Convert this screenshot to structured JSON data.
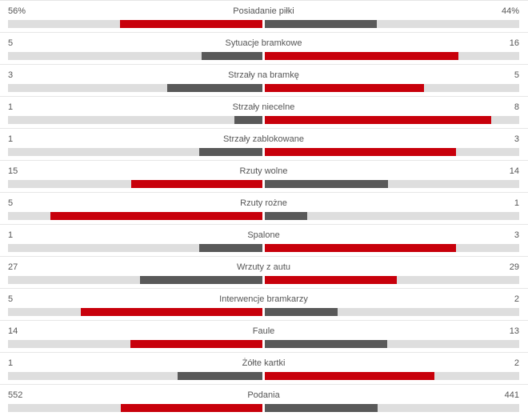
{
  "colors": {
    "winner": "#c8000b",
    "loser": "#595959",
    "track": "#dedede"
  },
  "stats": [
    {
      "name": "Posiadanie piłki",
      "home": "56%",
      "away": "44%",
      "home_value": 56,
      "away_value": 44
    },
    {
      "name": "Sytuacje bramkowe",
      "home": "5",
      "away": "16",
      "home_value": 5,
      "away_value": 16
    },
    {
      "name": "Strzały na bramkę",
      "home": "3",
      "away": "5",
      "home_value": 3,
      "away_value": 5
    },
    {
      "name": "Strzały niecelne",
      "home": "1",
      "away": "8",
      "home_value": 1,
      "away_value": 8
    },
    {
      "name": "Strzały zablokowane",
      "home": "1",
      "away": "3",
      "home_value": 1,
      "away_value": 3
    },
    {
      "name": "Rzuty wolne",
      "home": "15",
      "away": "14",
      "home_value": 15,
      "away_value": 14
    },
    {
      "name": "Rzuty rożne",
      "home": "5",
      "away": "1",
      "home_value": 5,
      "away_value": 1
    },
    {
      "name": "Spalone",
      "home": "1",
      "away": "3",
      "home_value": 1,
      "away_value": 3
    },
    {
      "name": "Wrzuty z autu",
      "home": "27",
      "away": "29",
      "home_value": 27,
      "away_value": 29
    },
    {
      "name": "Interwencje bramkarzy",
      "home": "5",
      "away": "2",
      "home_value": 5,
      "away_value": 2
    },
    {
      "name": "Faule",
      "home": "14",
      "away": "13",
      "home_value": 14,
      "away_value": 13
    },
    {
      "name": "Żółte kartki",
      "home": "1",
      "away": "2",
      "home_value": 1,
      "away_value": 2
    },
    {
      "name": "Podania",
      "home": "552",
      "away": "441",
      "home_value": 552,
      "away_value": 441
    }
  ]
}
